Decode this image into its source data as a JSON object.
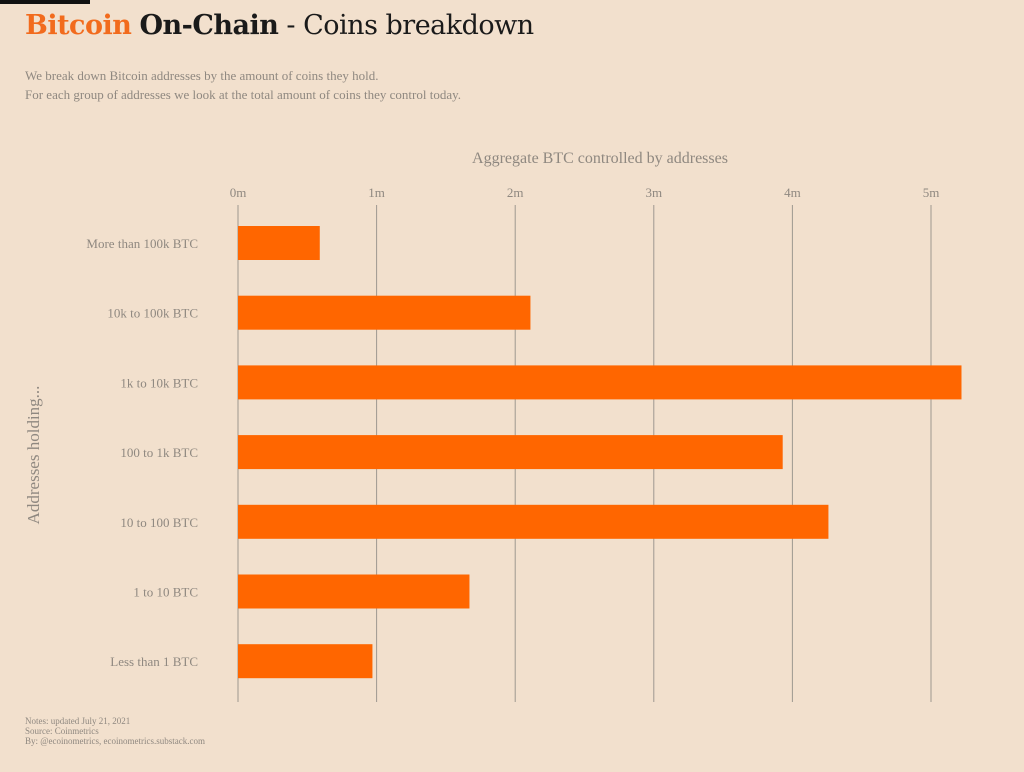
{
  "title": {
    "brand": "Bitcoin",
    "bold": "On-Chain",
    "rest": " - Coins breakdown"
  },
  "subtitle": [
    "We break down Bitcoin addresses by the amount of coins they hold.",
    "For each group of addresses we look at the total amount of coins they control today."
  ],
  "notes": [
    "Notes: updated July 21, 2021",
    "Source: Coinmetrics",
    "By: @ecoinometrics, ecoinometrics.substack.com"
  ],
  "colors": {
    "bar": "#ff6600",
    "grid": "#9e9890",
    "text": "#8f8880"
  },
  "chart_data": {
    "type": "bar",
    "orientation": "horizontal",
    "title": "Aggregate BTC controlled by addresses",
    "xlabel": "Aggregate BTC controlled by addresses",
    "ylabel": "Addresses holding...",
    "categories": [
      "More than 100k BTC",
      "10k to 100k BTC",
      "1k to 10k BTC",
      "100 to 1k BTC",
      "10 to 100 BTC",
      "1 to 10 BTC",
      "Less than 1 BTC"
    ],
    "values": [
      0.59,
      2.11,
      5.22,
      3.93,
      4.26,
      1.67,
      0.97
    ],
    "unit": "million BTC",
    "xticks": [
      0,
      1,
      2,
      3,
      4,
      5
    ],
    "xtick_labels": [
      "0m",
      "1m",
      "2m",
      "3m",
      "4m",
      "5m"
    ],
    "xlim": [
      0,
      5.3
    ],
    "grid": true,
    "legend": "none"
  }
}
